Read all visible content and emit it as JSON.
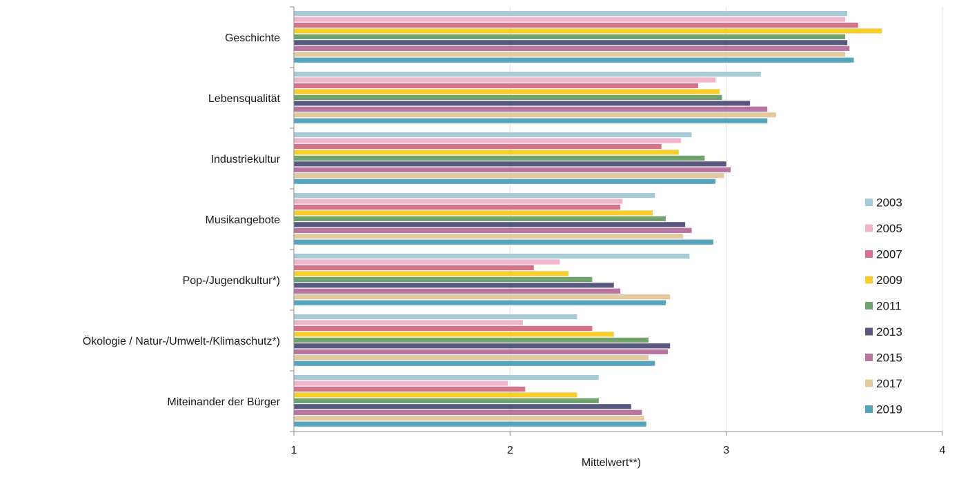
{
  "chart_data": {
    "type": "bar",
    "orientation": "horizontal",
    "title": "",
    "xlabel": "Mittelwert**)",
    "ylabel": "",
    "xlim": [
      1,
      4
    ],
    "xticks": [
      "1",
      "2",
      "3",
      "4"
    ],
    "grid": true,
    "legend_position": "right",
    "categories": [
      "Geschichte",
      "Lebensqualität",
      "Industriekultur",
      "Musikangebote",
      "Pop-/Jugendkultur*)",
      "Ökologie / Natur-/Umwelt-/Klimaschutz*)",
      "Miteinander der Bürger"
    ],
    "series": [
      {
        "name": "2003",
        "color": "#a6cbd7",
        "values": [
          3.56,
          3.16,
          2.84,
          2.67,
          2.83,
          2.31,
          2.41
        ]
      },
      {
        "name": "2005",
        "color": "#efb5c8",
        "values": [
          3.55,
          2.95,
          2.79,
          2.52,
          2.23,
          2.06,
          1.99
        ]
      },
      {
        "name": "2007",
        "color": "#d8718b",
        "values": [
          3.61,
          2.87,
          2.7,
          2.51,
          2.11,
          2.38,
          2.07
        ]
      },
      {
        "name": "2009",
        "color": "#f7cd30",
        "values": [
          3.72,
          2.97,
          2.78,
          2.66,
          2.27,
          2.48,
          2.31
        ]
      },
      {
        "name": "2011",
        "color": "#70a36d",
        "values": [
          3.55,
          2.98,
          2.9,
          2.72,
          2.38,
          2.64,
          2.41
        ]
      },
      {
        "name": "2013",
        "color": "#58587e",
        "values": [
          3.56,
          3.11,
          3.0,
          2.81,
          2.48,
          2.74,
          2.56
        ]
      },
      {
        "name": "2015",
        "color": "#b9739f",
        "values": [
          3.57,
          3.19,
          3.02,
          2.84,
          2.51,
          2.73,
          2.61
        ]
      },
      {
        "name": "2017",
        "color": "#e4c8a0",
        "values": [
          3.55,
          3.23,
          2.99,
          2.8,
          2.74,
          2.64,
          2.62
        ]
      },
      {
        "name": "2019",
        "color": "#55a4ba",
        "values": [
          3.59,
          3.19,
          2.95,
          2.94,
          2.72,
          2.67,
          2.63
        ]
      }
    ]
  }
}
